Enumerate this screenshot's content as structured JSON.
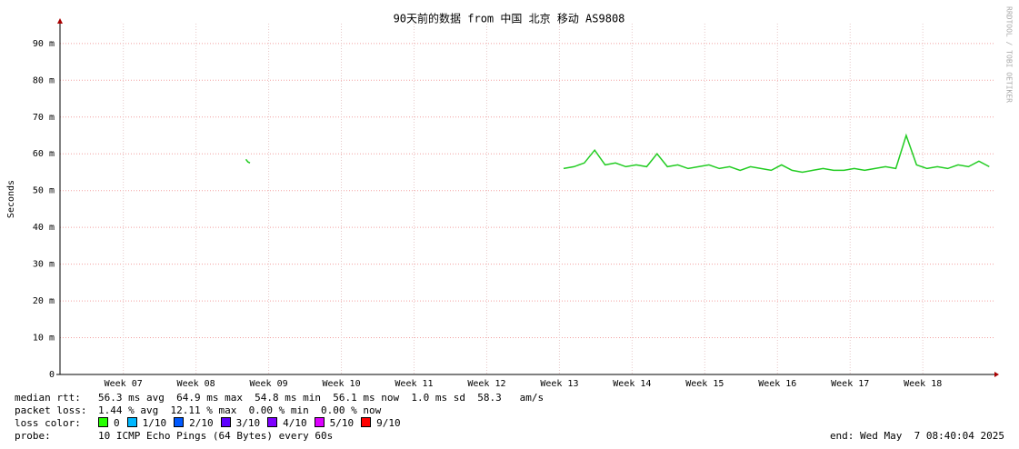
{
  "chart_data": {
    "type": "line",
    "title": "90天前的数据 from 中国 北京 移动 AS9808",
    "y_label": "Seconds",
    "watermark": "RRDTOOL / TOBI OETIKER",
    "xlim": [
      0,
      90
    ],
    "xticks": [
      {
        "value": 6.1,
        "label": "Week 07"
      },
      {
        "value": 13.1,
        "label": "Week 08"
      },
      {
        "value": 20.1,
        "label": "Week 09"
      },
      {
        "value": 27.1,
        "label": "Week 10"
      },
      {
        "value": 34.1,
        "label": "Week 11"
      },
      {
        "value": 41.1,
        "label": "Week 12"
      },
      {
        "value": 48.1,
        "label": "Week 13"
      },
      {
        "value": 55.1,
        "label": "Week 14"
      },
      {
        "value": 62.1,
        "label": "Week 15"
      },
      {
        "value": 69.1,
        "label": "Week 16"
      },
      {
        "value": 76.1,
        "label": "Week 17"
      },
      {
        "value": 83.1,
        "label": "Week 18"
      }
    ],
    "ylim": [
      0,
      0.0954
    ],
    "yticks": [
      0,
      {
        "value": 0.01,
        "label": "10 m"
      },
      {
        "value": 0.02,
        "label": "20 m"
      },
      {
        "value": 0.03,
        "label": "30 m"
      },
      {
        "value": 0.04,
        "label": "40 m"
      },
      {
        "value": 0.05,
        "label": "50 m"
      },
      {
        "value": 0.06,
        "label": "60 m"
      },
      {
        "value": 0.07,
        "label": "70 m"
      },
      {
        "value": 0.08,
        "label": "80 m"
      },
      {
        "value": 0.09,
        "label": "90 m"
      }
    ],
    "grid": true,
    "series": [
      {
        "name": "median rtt",
        "color": "#22cc22",
        "x": [
          17.9,
          18.1,
          18.3,
          30,
          48.5,
          49.5,
          50.5,
          51.5,
          52.5,
          53.5,
          54.5,
          55.5,
          56.5,
          57.5,
          58.5,
          59.5,
          60.5,
          61.5,
          62.5,
          63.5,
          64.5,
          65.5,
          66.5,
          67.5,
          68.5,
          69.5,
          70.5,
          71.5,
          72.5,
          73.5,
          74.5,
          75.5,
          76.5,
          77.5,
          78.5,
          79.5,
          80.5,
          81.5,
          82.5,
          83.5,
          84.5,
          85.5,
          86.5,
          87.5,
          88.5,
          89.5
        ],
        "values": [
          0.0585,
          0.0578,
          0.0575,
          null,
          0.056,
          0.0565,
          0.0575,
          0.061,
          0.057,
          0.0575,
          0.0565,
          0.057,
          0.0565,
          0.06,
          0.0565,
          0.057,
          0.056,
          0.0565,
          0.057,
          0.056,
          0.0565,
          0.0555,
          0.0565,
          0.056,
          0.0555,
          0.057,
          0.0555,
          0.055,
          0.0555,
          0.056,
          0.0555,
          0.0555,
          0.056,
          0.0555,
          0.056,
          0.0565,
          0.056,
          0.065,
          0.057,
          0.056,
          0.0565,
          0.056,
          0.057,
          0.0565,
          0.058,
          0.0565
        ]
      }
    ]
  },
  "footer": {
    "rtt_label": "median rtt:",
    "rtt": "56.3 ms avg  64.9 ms max  54.8 ms min  56.1 ms now  1.0 ms sd  58.3   am/s",
    "loss_label": "packet loss:",
    "loss": "1.44 % avg  12.11 % max  0.00 % min  0.00 % now",
    "color_label": "loss color:",
    "loss_colors": [
      {
        "label": "0",
        "color": "#26ff00"
      },
      {
        "label": "1/10",
        "color": "#00b8ff"
      },
      {
        "label": "2/10",
        "color": "#0059ff"
      },
      {
        "label": "3/10",
        "color": "#5e00ff"
      },
      {
        "label": "4/10",
        "color": "#7e00ff"
      },
      {
        "label": "5/10",
        "color": "#dd00ff"
      },
      {
        "label": "9/10",
        "color": "#ff0000"
      }
    ],
    "probe_label": "probe:",
    "probe": "10 ICMP Echo Pings (64 Bytes) every 60s",
    "end": "end: Wed May  7 08:40:04 2025"
  }
}
